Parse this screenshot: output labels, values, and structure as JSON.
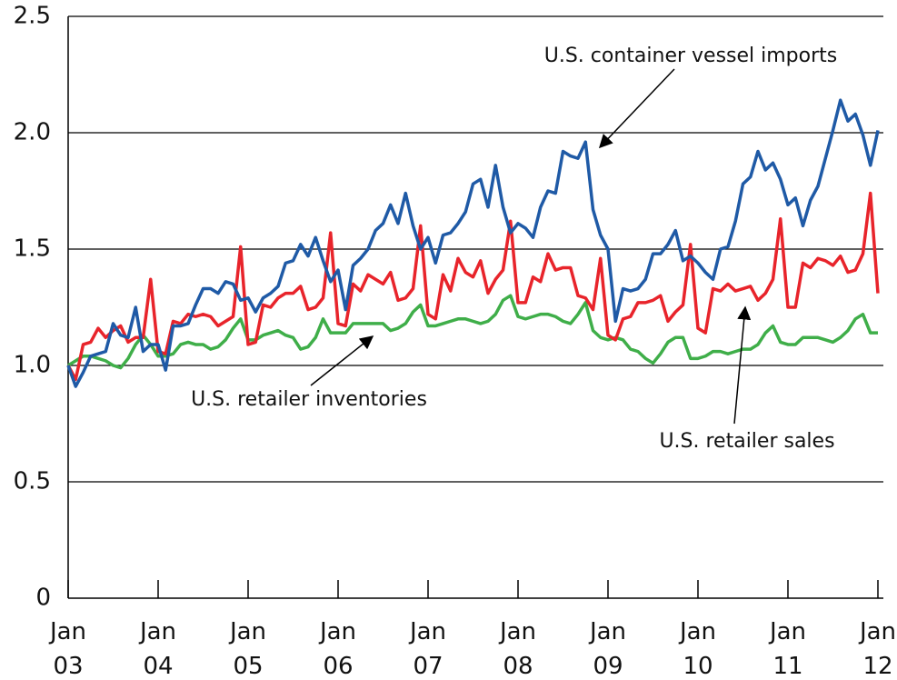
{
  "chart_data": {
    "type": "line",
    "categories": [
      "Jan 03",
      null,
      null,
      null,
      null,
      null,
      null,
      null,
      null,
      null,
      null,
      null,
      "Jan 04",
      null,
      null,
      null,
      null,
      null,
      null,
      null,
      null,
      null,
      null,
      null,
      "Jan 05",
      null,
      null,
      null,
      null,
      null,
      null,
      null,
      null,
      null,
      null,
      null,
      "Jan 06",
      null,
      null,
      null,
      null,
      null,
      null,
      null,
      null,
      null,
      null,
      null,
      "Jan 07",
      null,
      null,
      null,
      null,
      null,
      null,
      null,
      null,
      null,
      null,
      null,
      "Jan 08",
      null,
      null,
      null,
      null,
      null,
      null,
      null,
      null,
      null,
      null,
      null,
      "Jan 09",
      null,
      null,
      null,
      null,
      null,
      null,
      null,
      null,
      null,
      null,
      null,
      "Jan 10",
      null,
      null,
      null,
      null,
      null,
      null,
      null,
      null,
      null,
      null,
      null,
      "Jan 11",
      null,
      null,
      null,
      null,
      null,
      null,
      null,
      null,
      null,
      null,
      null,
      "Jan 12"
    ],
    "series": [
      {
        "name": "U.S. container vessel imports",
        "color": "#1f5aa6",
        "values": [
          1.0,
          0.91,
          0.97,
          1.04,
          1.05,
          1.06,
          1.18,
          1.13,
          1.12,
          1.25,
          1.06,
          1.09,
          1.09,
          0.98,
          1.17,
          1.17,
          1.18,
          1.26,
          1.33,
          1.33,
          1.31,
          1.36,
          1.35,
          1.28,
          1.29,
          1.23,
          1.29,
          1.31,
          1.34,
          1.44,
          1.45,
          1.52,
          1.47,
          1.55,
          1.45,
          1.36,
          1.41,
          1.24,
          1.43,
          1.46,
          1.5,
          1.58,
          1.61,
          1.69,
          1.61,
          1.74,
          1.6,
          1.5,
          1.55,
          1.44,
          1.56,
          1.57,
          1.61,
          1.66,
          1.78,
          1.8,
          1.68,
          1.86,
          1.68,
          1.57,
          1.61,
          1.59,
          1.55,
          1.68,
          1.75,
          1.74,
          1.92,
          1.9,
          1.89,
          1.96,
          1.67,
          1.56,
          1.5,
          1.19,
          1.33,
          1.32,
          1.33,
          1.37,
          1.48,
          1.48,
          1.52,
          1.58,
          1.45,
          1.47,
          1.44,
          1.4,
          1.37,
          1.5,
          1.51,
          1.62,
          1.78,
          1.81,
          1.92,
          1.84,
          1.87,
          1.8,
          1.69,
          1.72,
          1.6,
          1.71,
          1.77,
          1.89,
          2.01,
          2.14,
          2.05,
          2.08,
          1.99,
          1.86,
          2.01
        ]
      },
      {
        "name": "U.S. retailer sales",
        "color": "#e8242b",
        "values": [
          1.0,
          0.94,
          1.09,
          1.1,
          1.16,
          1.12,
          1.15,
          1.17,
          1.1,
          1.12,
          1.12,
          1.37,
          1.06,
          1.05,
          1.19,
          1.18,
          1.22,
          1.21,
          1.22,
          1.21,
          1.17,
          1.19,
          1.21,
          1.51,
          1.09,
          1.1,
          1.26,
          1.25,
          1.29,
          1.31,
          1.31,
          1.34,
          1.24,
          1.25,
          1.29,
          1.57,
          1.18,
          1.17,
          1.35,
          1.32,
          1.39,
          1.37,
          1.35,
          1.4,
          1.28,
          1.29,
          1.33,
          1.6,
          1.22,
          1.2,
          1.39,
          1.32,
          1.46,
          1.4,
          1.38,
          1.45,
          1.31,
          1.37,
          1.41,
          1.62,
          1.27,
          1.27,
          1.38,
          1.36,
          1.48,
          1.41,
          1.42,
          1.42,
          1.3,
          1.29,
          1.24,
          1.46,
          1.13,
          1.11,
          1.2,
          1.21,
          1.27,
          1.27,
          1.28,
          1.3,
          1.19,
          1.23,
          1.26,
          1.52,
          1.16,
          1.14,
          1.33,
          1.32,
          1.35,
          1.32,
          1.33,
          1.34,
          1.28,
          1.31,
          1.37,
          1.63,
          1.25,
          1.25,
          1.44,
          1.42,
          1.46,
          1.45,
          1.43,
          1.47,
          1.4,
          1.41,
          1.48,
          1.74,
          1.31
        ]
      },
      {
        "name": "U.S. retailer inventories",
        "color": "#3fae49",
        "values": [
          1.0,
          1.02,
          1.04,
          1.04,
          1.03,
          1.02,
          1.0,
          0.99,
          1.03,
          1.09,
          1.13,
          1.09,
          1.04,
          1.04,
          1.05,
          1.09,
          1.1,
          1.09,
          1.09,
          1.07,
          1.08,
          1.11,
          1.16,
          1.2,
          1.11,
          1.11,
          1.13,
          1.14,
          1.15,
          1.13,
          1.12,
          1.07,
          1.08,
          1.12,
          1.2,
          1.14,
          1.14,
          1.14,
          1.18,
          1.18,
          1.18,
          1.18,
          1.18,
          1.15,
          1.16,
          1.18,
          1.23,
          1.26,
          1.17,
          1.17,
          1.18,
          1.19,
          1.2,
          1.2,
          1.19,
          1.18,
          1.19,
          1.22,
          1.28,
          1.3,
          1.21,
          1.2,
          1.21,
          1.22,
          1.22,
          1.21,
          1.19,
          1.18,
          1.22,
          1.27,
          1.15,
          1.12,
          1.11,
          1.12,
          1.11,
          1.07,
          1.06,
          1.03,
          1.01,
          1.05,
          1.1,
          1.12,
          1.12,
          1.03,
          1.03,
          1.04,
          1.06,
          1.06,
          1.05,
          1.06,
          1.07,
          1.07,
          1.09,
          1.14,
          1.17,
          1.1,
          1.09,
          1.09,
          1.12,
          1.12,
          1.12,
          1.11,
          1.1,
          1.12,
          1.15,
          1.2,
          1.22,
          1.14,
          1.14
        ]
      }
    ],
    "ylim": [
      0,
      2.5
    ],
    "yticks": [
      0,
      0.5,
      {
        "value": 1,
        "label": "1.0"
      },
      1.5,
      {
        "value": 2,
        "label": "2.0"
      },
      2.5
    ],
    "grid": true
  }
}
